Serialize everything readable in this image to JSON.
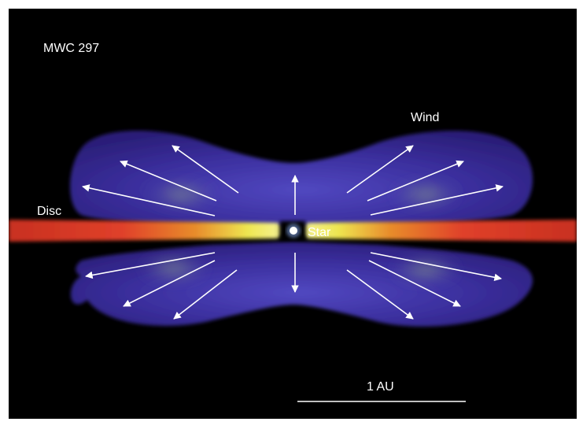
{
  "labels": {
    "object": "MWC 297",
    "wind": "Wind",
    "disc": "Disc",
    "star": "Star",
    "scale": "1 AU"
  },
  "colors": {
    "background": "#000000",
    "wind_lobe": "#3a2f9a",
    "disc_outer": "#d93a2a",
    "disc_inner": "#f2e94a",
    "star": "#ffffff",
    "arrow": "#ffffff"
  }
}
